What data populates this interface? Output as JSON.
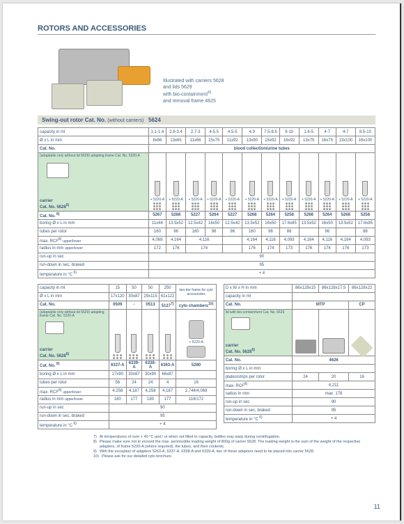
{
  "title": "ROTORS AND ACCESSORIES",
  "hero_text": [
    "Illustrated with carriers 5628",
    "and lids 5629",
    "with bio-containment",
    "and removal frame 4625"
  ],
  "swingout": {
    "label": "Swing-out rotor Cat. No.",
    "sub": "(without carriers)",
    "num": "5624"
  },
  "t1": {
    "capacity": {
      "lbl": "capacity in ml",
      "vals": [
        "1.1-1.4",
        "2.6-3.4",
        "2.7-3",
        "4-5.5",
        "4.5-5",
        "4.9",
        "7.5-8.5",
        "9-10",
        "1.6-5",
        "4-7",
        "4-7",
        "8.5-10"
      ]
    },
    "dxl": {
      "lbl": "Ø x L in mm",
      "vals": [
        "8x66",
        "13x65",
        "11x66",
        "15x75",
        "11x92",
        "13x90",
        "15x92",
        "16x92",
        "13x75",
        "16x75",
        "13x100",
        "16x100"
      ]
    },
    "catno_lbl": "Cat. No.",
    "bct": "blood collection/urine tubes",
    "carrier": {
      "small": "(adaptable only without lid 5629) adapting frame Cat. No. 5220-A",
      "lbl": "carrier",
      "cat": "Cat. No. 5628"
    },
    "plus": "+ 5220-A",
    "catno2": {
      "lbl": "Cat. No.",
      "vals": [
        "5267",
        "5268",
        "5227",
        "5264",
        "5227",
        "5268",
        "5264",
        "5258",
        "5268",
        "5264",
        "5268",
        "5258"
      ]
    },
    "boring": {
      "lbl": "boring Ø x L in mm",
      "vals": [
        "11x44",
        "13.5x52",
        "12.5x42",
        "16x50",
        "12.5x42",
        "13.5x52",
        "16x50",
        "17.6x85",
        "13.5x52",
        "16x50",
        "13.5x52",
        "17.6x85"
      ]
    },
    "tubes": {
      "lbl": "tubes per rotor",
      "vals": [
        "160",
        "96",
        "160",
        "96",
        "96",
        "160",
        "96",
        "88",
        "",
        "96",
        "",
        "88"
      ]
    },
    "rcf": {
      "lbl": "max. RCF",
      "vals": [
        "4,069",
        "4,164",
        "",
        "4,116",
        "",
        "4,164",
        "4,116",
        "4,093",
        "4,164",
        "4,116",
        "4,164",
        "4,093"
      ]
    },
    "radius": {
      "lbl": "radius in mm",
      "vals": [
        "172",
        "176",
        "",
        "174",
        "",
        "176",
        "174",
        "173",
        "176",
        "174",
        "176",
        "173"
      ]
    },
    "runup": {
      "lbl": "run-up in sec",
      "val": "90"
    },
    "rundown": {
      "lbl": "run-down in sec, braked",
      "val": "95"
    },
    "temp": {
      "lbl": "temperature in °C",
      "val": "+ 4"
    }
  },
  "t2": {
    "capacity": {
      "lbl": "capacity in ml",
      "vals": [
        "15",
        "50",
        "50",
        "250"
      ],
      "extra": "two-tier frame for cyto accessories"
    },
    "dxl": {
      "lbl": "Ø x L in mm",
      "vals": [
        "17x120",
        "30x87",
        "29x115",
        "61x122"
      ]
    },
    "catno": {
      "lbl": "Cat. No.",
      "vals": [
        "0509",
        "-",
        "0513",
        "5127"
      ],
      "extra": "cyto chambers"
    },
    "carrier": {
      "small": "(adaptable only without lid 5629) adapting frame Cat. No. 5220-A",
      "lbl": "carrier",
      "cat": "Cat. No. 5628"
    },
    "plus": "+ 5220-A",
    "catno2": {
      "lbl": "Cat. No.",
      "vals": [
        "6337-A",
        "6339-A",
        "6338-A",
        "6363-A",
        "5280"
      ]
    },
    "boring": {
      "lbl": "boring Ø x L in mm",
      "vals": [
        "17x90",
        "30x87",
        "30x90",
        "66x87",
        ""
      ]
    },
    "tubes": {
      "lbl": "tubes per rotor",
      "vals": [
        "56",
        "24",
        "24",
        "4",
        "16"
      ]
    },
    "rcf": {
      "lbl": "max. RCF",
      "vals": [
        "4,258",
        "4,187",
        "4,258",
        "4,187",
        "2,744/4,069"
      ]
    },
    "radius": {
      "lbl": "radius in mm",
      "vals": [
        "180",
        "177",
        "180",
        "177",
        "116/172"
      ]
    },
    "runup": {
      "lbl": "run-up in sec",
      "val": "90"
    },
    "rundown": {
      "lbl": "run-down in sec, braked",
      "val": "95"
    },
    "temp": {
      "lbl": "temperature in °C",
      "val": "+ 4"
    }
  },
  "t3": {
    "dwh": {
      "lbl": "D x W x H in mm",
      "vals": [
        "86x128x15",
        "86x128x17.5",
        "86x128x22"
      ]
    },
    "capacity": {
      "lbl": "capacity in ml",
      "val": ""
    },
    "catno": {
      "lbl": "Cat. No.",
      "h1": "MTP",
      "h2": "CP"
    },
    "carrier": {
      "small": "lid with bio-containment Cat. No. 5629",
      "lbl": "carrier",
      "cat": "Cat. No. 5628"
    },
    "catno2": {
      "lbl": "Cat. No.",
      "val": "4626"
    },
    "boring": {
      "lbl": "boring Ø x L in mm",
      "val": ""
    },
    "plates": {
      "lbl": "plates/strips per rotor",
      "vals": [
        "24",
        "20",
        "16"
      ]
    },
    "rcf": {
      "lbl": "max. RCF",
      "val": "4,211"
    },
    "radius": {
      "lbl": "radius in mm",
      "val": "max. 178"
    },
    "runup": {
      "lbl": "run-up in sec",
      "val": "90"
    },
    "rundown": {
      "lbl": "run-down in sec, braked",
      "val": "95"
    },
    "temp": {
      "lbl": "temperature in °C",
      "val": "+ 4"
    }
  },
  "footnotes": [
    "At temperatures of over + 40 °C and / or when not filled to capacity, bottles may warp during centrifugation.",
    "Please make sure not to exceed the max. permissible loading weight of 800g of carrier 5628. The loading weight is the sum of the weight of the respective adapters, of frame 5220-A (where required), the tubes, and their contents.",
    "With the exception of adapters 5263-A, 6337-A, 6338-A and 6339-A, two of these adapters need to be placed into carrier 5628.",
    "Please ask for our detailed cyto brochure."
  ],
  "page": "11"
}
